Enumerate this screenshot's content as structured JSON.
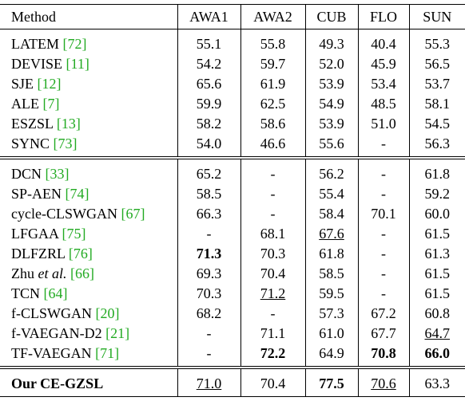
{
  "table": {
    "header": [
      "Method",
      "AWA1",
      "AWA2",
      "CUB",
      "FLO",
      "SUN"
    ],
    "groups": [
      {
        "rows": [
          {
            "method": "LATEM",
            "ref": "[72]",
            "values": [
              "55.1",
              "55.8",
              "49.3",
              "40.4",
              "55.3"
            ]
          },
          {
            "method": "DEVISE",
            "ref": "[11]",
            "values": [
              "54.2",
              "59.7",
              "52.0",
              "45.9",
              "56.5"
            ]
          },
          {
            "method": "SJE",
            "ref": "[12]",
            "values": [
              "65.6",
              "61.9",
              "53.9",
              "53.4",
              "53.7"
            ]
          },
          {
            "method": "ALE",
            "ref": "[7]",
            "values": [
              "59.9",
              "62.5",
              "54.9",
              "48.5",
              "58.1"
            ]
          },
          {
            "method": "ESZSL",
            "ref": "[13]",
            "values": [
              "58.2",
              "58.6",
              "53.9",
              "51.0",
              "54.5"
            ]
          },
          {
            "method": "SYNC",
            "ref": "[73]",
            "values": [
              "54.0",
              "46.6",
              "55.6",
              "-",
              "56.3"
            ]
          }
        ]
      },
      {
        "rows": [
          {
            "method": "DCN",
            "ref": "[33]",
            "values": [
              "65.2",
              "-",
              "56.2",
              "-",
              "61.8"
            ]
          },
          {
            "method": "SP-AEN",
            "ref": "[74]",
            "values": [
              "58.5",
              "-",
              "55.4",
              "-",
              "59.2"
            ]
          },
          {
            "method": "cycle-CLSWGAN",
            "ref": "[67]",
            "values": [
              "66.3",
              "-",
              "58.4",
              "70.1",
              "60.0"
            ]
          },
          {
            "method": "LFGAA",
            "ref": "[75]",
            "values": [
              "-",
              "68.1",
              "67.6",
              "-",
              "61.5"
            ],
            "underline": [
              2
            ]
          },
          {
            "method": "DLFZRL",
            "ref": "[76]",
            "values": [
              "71.3",
              "70.3",
              "61.8",
              "-",
              "61.3"
            ],
            "bold": [
              0
            ]
          },
          {
            "method": "Zhu",
            "method_italic": "et al.",
            "ref": "[66]",
            "values": [
              "69.3",
              "70.4",
              "58.5",
              "-",
              "61.5"
            ]
          },
          {
            "method": "TCN",
            "ref": "[64]",
            "values": [
              "70.3",
              "71.2",
              "59.5",
              "-",
              "61.5"
            ],
            "underline": [
              1
            ]
          },
          {
            "method": "f-CLSWGAN",
            "ref": "[20]",
            "values": [
              "68.2",
              "-",
              "57.3",
              "67.2",
              "60.8"
            ]
          },
          {
            "method": "f-VAEGAN-D2",
            "ref": "[21]",
            "values": [
              "-",
              "71.1",
              "61.0",
              "67.7",
              "64.7"
            ],
            "underline": [
              4
            ]
          },
          {
            "method": "TF-VAEGAN",
            "ref": "[71]",
            "values": [
              "-",
              "72.2",
              "64.9",
              "70.8",
              "66.0"
            ],
            "bold": [
              1,
              3,
              4
            ]
          }
        ]
      },
      {
        "rows": [
          {
            "method": "Our CE-GZSL",
            "method_bold": true,
            "values": [
              "71.0",
              "70.4",
              "77.5",
              "70.6",
              "63.3"
            ],
            "bold": [
              2
            ],
            "underline": [
              0,
              3
            ]
          }
        ]
      }
    ]
  }
}
